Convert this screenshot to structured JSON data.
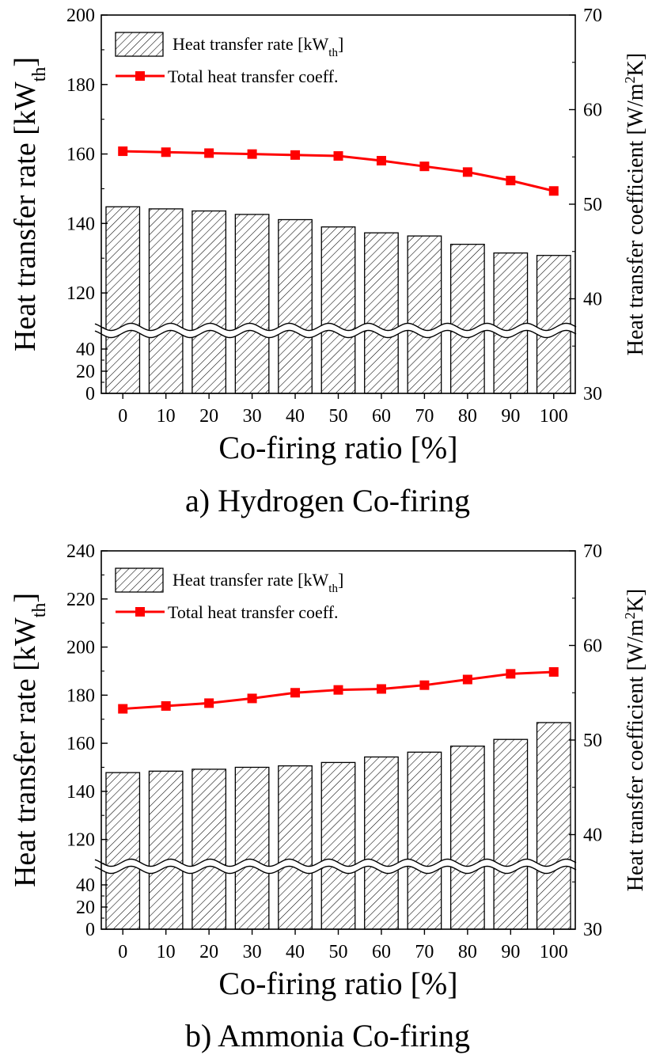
{
  "chart_data": [
    {
      "type": "bar",
      "caption": "a) Hydrogen Co-firing",
      "categories": [
        "0",
        "10",
        "20",
        "30",
        "40",
        "50",
        "60",
        "70",
        "80",
        "90",
        "100"
      ],
      "xlabel": "Co-firing ratio [%]",
      "ylabel": "Heat transfer rate [kW",
      "ylabel_sub": "th",
      "ylabel_end": "]",
      "y2label": "Heat transfer coefficient [W/m",
      "y2label_sup": "2",
      "y2label_end": "K]",
      "y_axis_break": true,
      "y_ticks_lower": [
        0,
        20,
        40
      ],
      "y_ticks_upper": [
        120,
        140,
        160,
        180,
        200
      ],
      "ylim_upper": [
        110,
        200
      ],
      "y2lim": [
        30,
        70
      ],
      "y2_ticks": [
        30,
        40,
        50,
        60,
        70
      ],
      "legend_position": "top-left",
      "series": [
        {
          "name": "Heat transfer rate [kW",
          "name_sub": "th",
          "name_end": "]",
          "axis": "left",
          "kind": "bar",
          "pattern": "hatch",
          "values": [
            144.8,
            144.2,
            143.6,
            142.6,
            141.1,
            139.0,
            137.3,
            136.4,
            134.0,
            131.5,
            130.8
          ]
        },
        {
          "name": "Total heat transfer coeff.",
          "axis": "right",
          "kind": "line",
          "color": "#ff0000",
          "marker": "square",
          "values": [
            55.6,
            55.5,
            55.4,
            55.3,
            55.2,
            55.1,
            54.6,
            54.0,
            53.4,
            52.5,
            51.4
          ]
        }
      ]
    },
    {
      "type": "bar",
      "caption": "b) Ammonia Co-firing",
      "categories": [
        "0",
        "10",
        "20",
        "30",
        "40",
        "50",
        "60",
        "70",
        "80",
        "90",
        "100"
      ],
      "xlabel": "Co-firing ratio [%]",
      "ylabel": "Heat transfer rate [kW",
      "ylabel_sub": "th",
      "ylabel_end": "]",
      "y2label": "Heat transfer coefficient [W/m",
      "y2label_sup": "2",
      "y2label_end": "K]",
      "y_axis_break": true,
      "y_ticks_lower": [
        0,
        20,
        40
      ],
      "y_ticks_upper": [
        120,
        140,
        160,
        180,
        200,
        220,
        240
      ],
      "ylim_upper": [
        110,
        240
      ],
      "y2lim": [
        30,
        70
      ],
      "y2_ticks": [
        30,
        40,
        50,
        60,
        70
      ],
      "legend_position": "top-left",
      "series": [
        {
          "name": "Heat transfer rate [kW",
          "name_sub": "th",
          "name_end": "]",
          "axis": "left",
          "kind": "bar",
          "pattern": "hatch",
          "values": [
            147.8,
            148.4,
            149.2,
            150.0,
            150.6,
            152.0,
            154.3,
            156.3,
            158.8,
            161.6,
            168.6
          ]
        },
        {
          "name": "Total heat transfer coeff.",
          "axis": "right",
          "kind": "line",
          "color": "#ff0000",
          "marker": "square",
          "values": [
            53.3,
            53.6,
            53.9,
            54.4,
            55.0,
            55.3,
            55.4,
            55.8,
            56.4,
            57.0,
            57.2
          ]
        }
      ]
    }
  ]
}
